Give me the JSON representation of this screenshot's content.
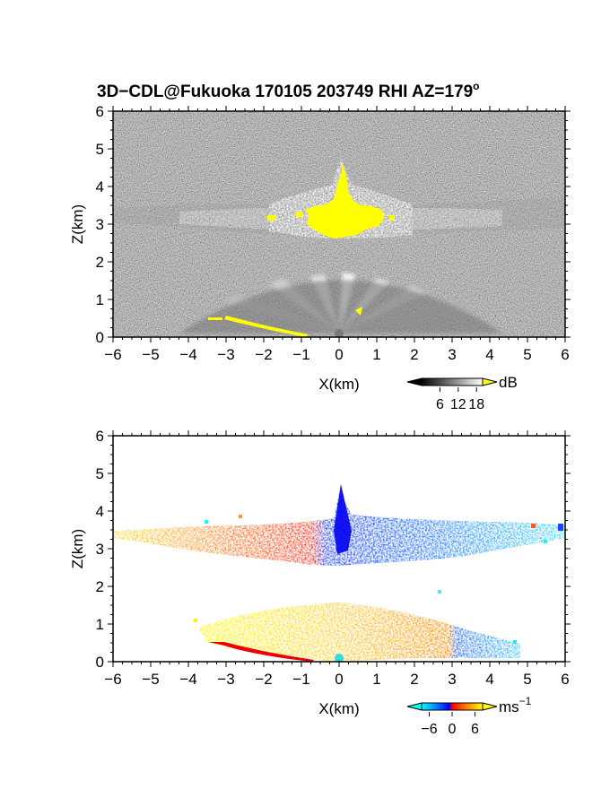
{
  "title_main": "3D−CDL@Fukuoka 170105 203749 RHI AZ=179",
  "title_deg": "o",
  "chart_data": [
    {
      "type": "heatmap",
      "variable": "reflectivity",
      "xlabel": "X(km)",
      "ylabel": "Z(km)",
      "xlim": [
        -6,
        6
      ],
      "ylim": [
        0,
        6
      ],
      "xticks": [
        -6,
        -5,
        -4,
        -3,
        -2,
        -1,
        0,
        1,
        2,
        3,
        4,
        5,
        6
      ],
      "yticks": [
        0,
        1,
        2,
        3,
        4,
        5,
        6
      ],
      "colorscale": "grayscale to white, saturated yellow above max",
      "colorbar": {
        "unit": "dB",
        "ticks": [
          "6",
          "12",
          "18"
        ],
        "range": [
          0,
          20
        ],
        "over_color": "#ffff00"
      },
      "features": {
        "cloud_layer_km": [
          2.8,
          3.6
        ],
        "saturated_core": {
          "x_km": [
            -1.0,
            1.2
          ],
          "z_km": [
            2.8,
            4.8
          ]
        },
        "near_ground_beams_km": [
          0,
          1.5
        ]
      }
    },
    {
      "type": "heatmap",
      "variable": "radial velocity",
      "xlabel": "X(km)",
      "ylabel": "Z(km)",
      "xlim": [
        -6,
        6
      ],
      "ylim": [
        0,
        6
      ],
      "xticks": [
        -6,
        -5,
        -4,
        -3,
        -2,
        -1,
        0,
        1,
        2,
        3,
        4,
        5,
        6
      ],
      "yticks": [
        0,
        1,
        2,
        3,
        4,
        5,
        6
      ],
      "colorscale": "cyan-blue (negative) to red-orange-yellow (positive)",
      "colorbar": {
        "unit": "ms",
        "unit_exp": "−1",
        "ticks": [
          "−6",
          "0",
          "6"
        ],
        "range": [
          -8,
          8
        ]
      },
      "features": {
        "upper_layer_km": [
          2.6,
          3.9
        ],
        "updraft_top_km": 4.8,
        "lower_layer_km": [
          0,
          1.6
        ]
      }
    }
  ],
  "colors": {
    "over_yellow": "#ffff00",
    "vel_pos": "#ff3300",
    "vel_neg": "#0033ff",
    "vel_far_neg": "#00ffff",
    "vel_far_pos": "#ffee00"
  }
}
